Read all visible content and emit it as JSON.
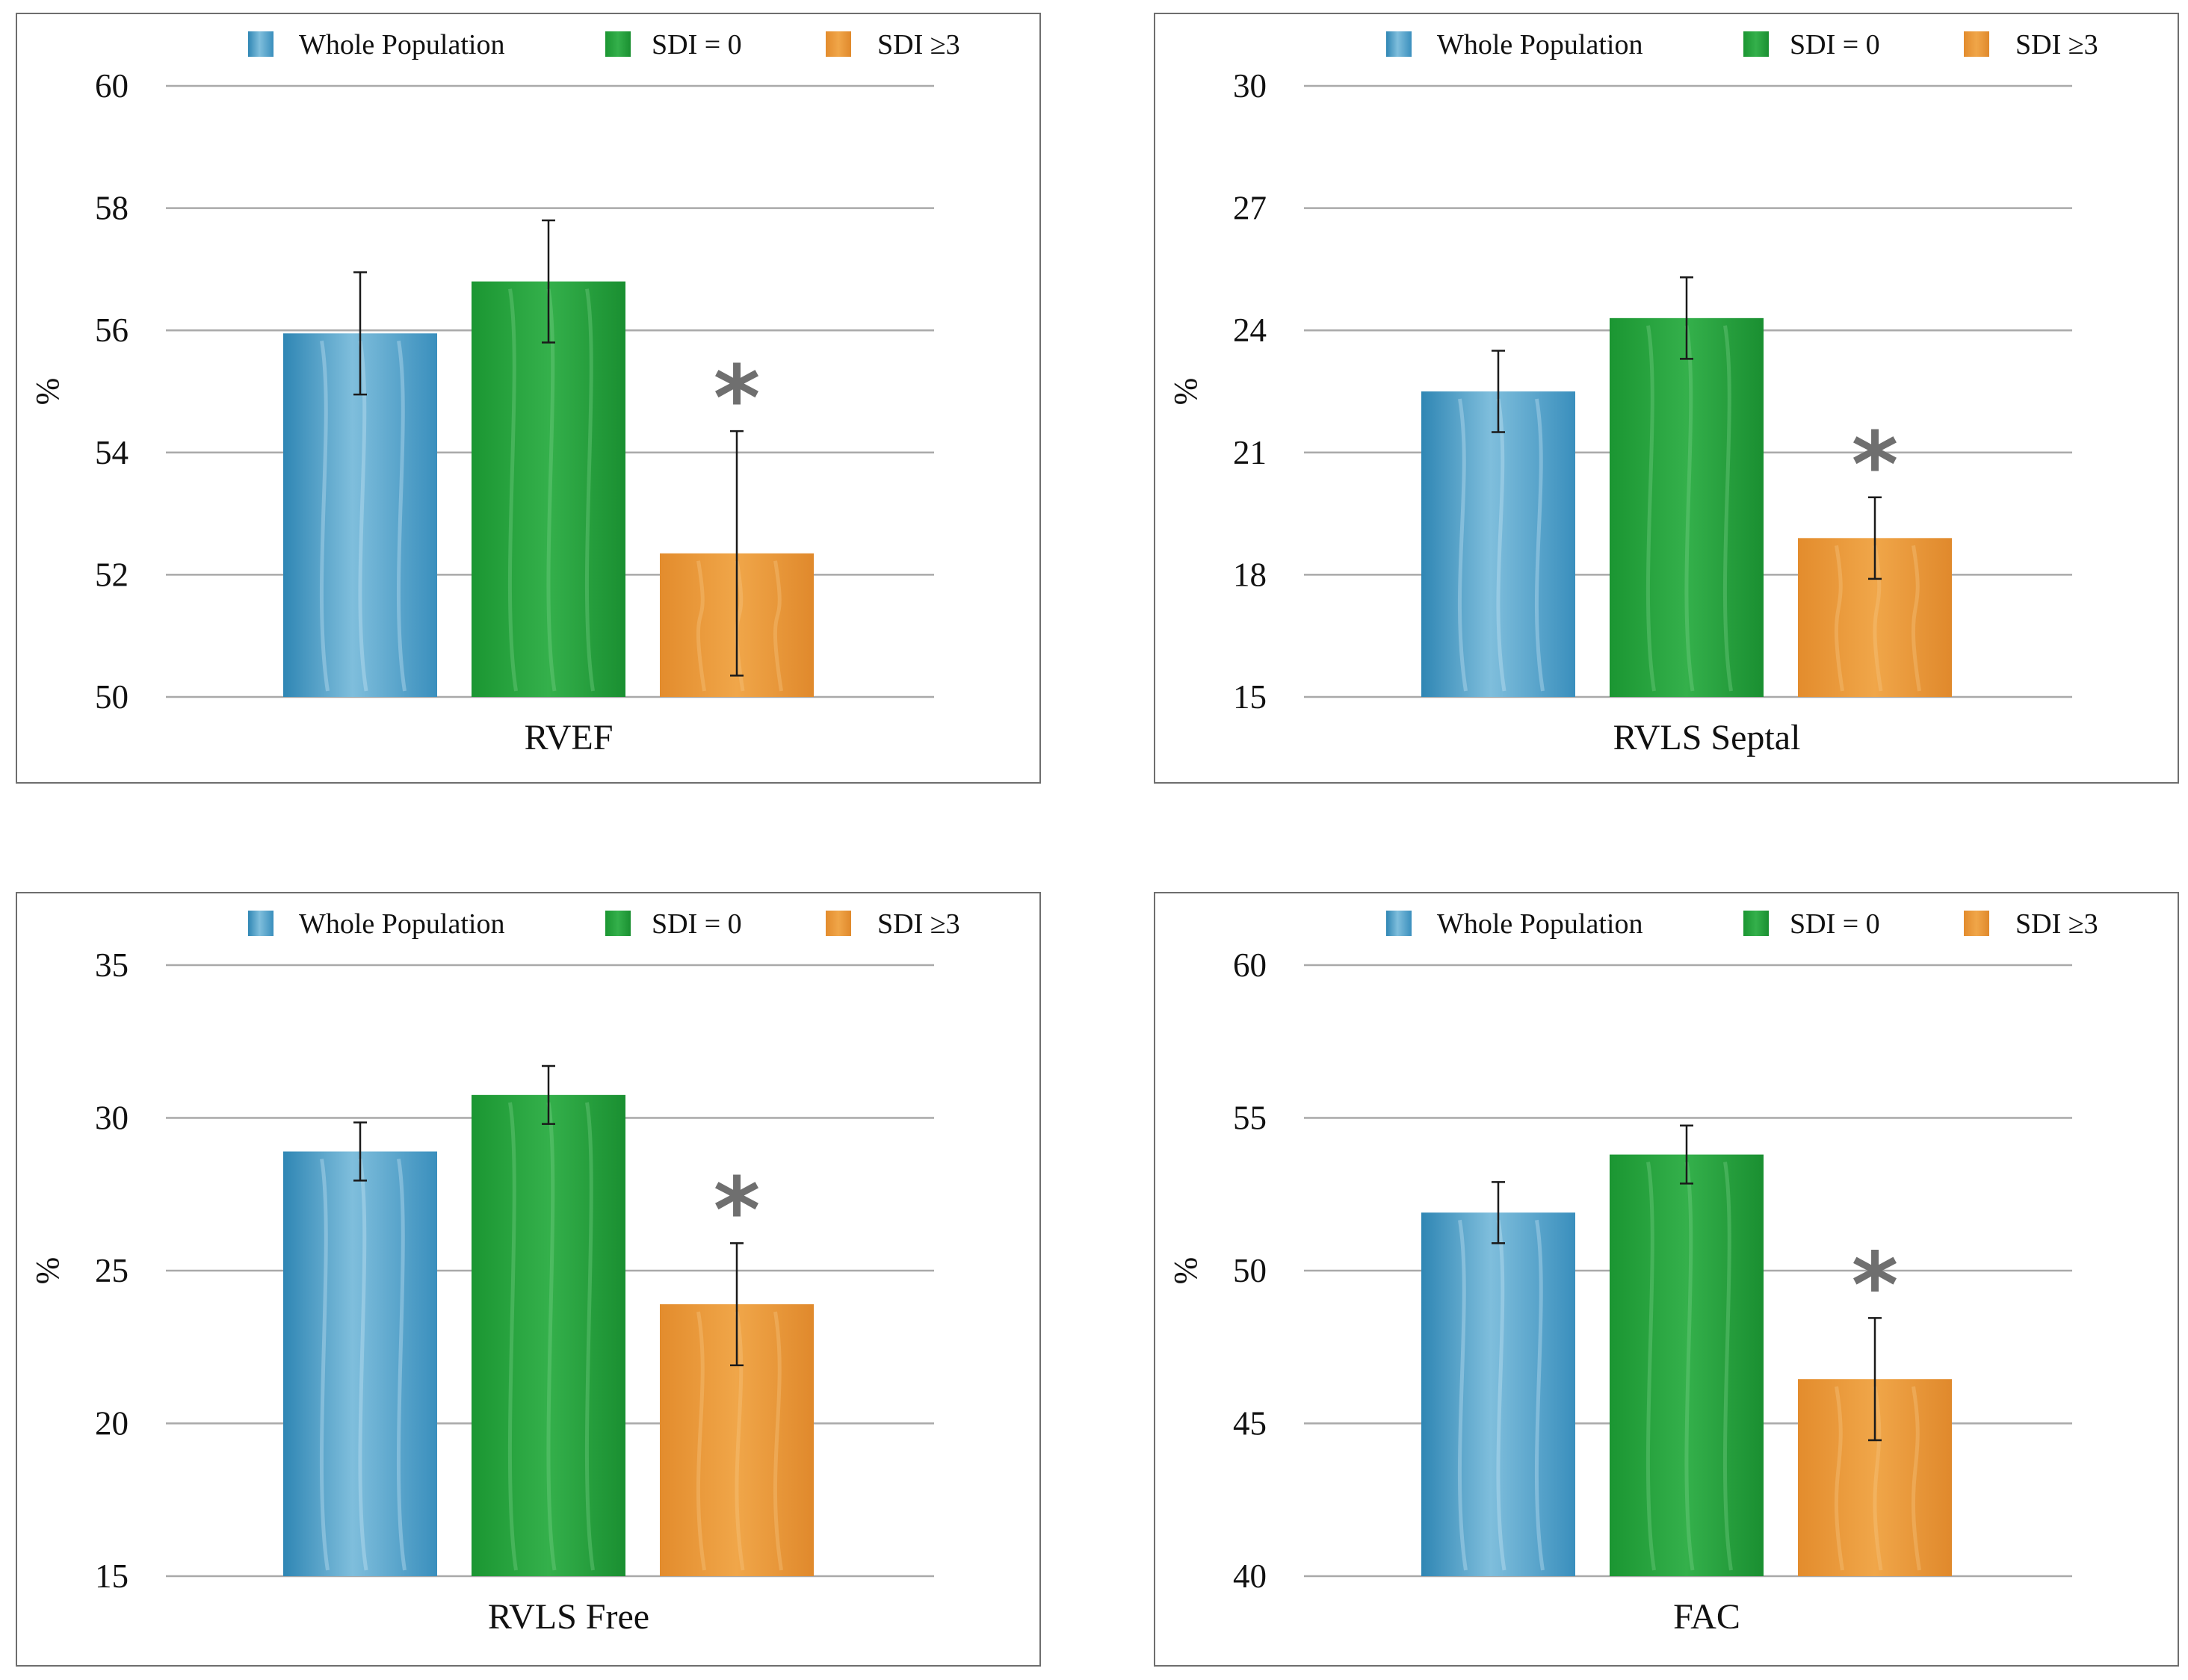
{
  "chart_data": [
    {
      "type": "bar",
      "title": "",
      "xlabel": "RVEF",
      "ylabel": "%",
      "ylim": [
        50,
        60
      ],
      "yticks": [
        50,
        52,
        54,
        56,
        58,
        60
      ],
      "grid": true,
      "legend_position": "top",
      "categories": [
        "Whole Population",
        "SDI = 0",
        "SDI ≥3"
      ],
      "series": [
        {
          "name": "Whole Population",
          "color": "#4c9cc6",
          "value": 55.95,
          "error": 1.0
        },
        {
          "name": "SDI = 0",
          "color": "#22a33a",
          "value": 56.8,
          "error": 1.0
        },
        {
          "name": "SDI ≥3",
          "color": "#eb9a3a",
          "value": 52.35,
          "error": 2.0,
          "annotation": "*"
        }
      ]
    },
    {
      "type": "bar",
      "title": "",
      "xlabel": "RVLS Septal",
      "ylabel": "%",
      "ylim": [
        15,
        30
      ],
      "yticks": [
        15,
        18,
        21,
        24,
        27,
        30
      ],
      "grid": true,
      "legend_position": "top",
      "categories": [
        "Whole Population",
        "SDI = 0",
        "SDI ≥3"
      ],
      "series": [
        {
          "name": "Whole Population",
          "color": "#4c9cc6",
          "value": 22.5,
          "error": 1.0
        },
        {
          "name": "SDI = 0",
          "color": "#22a33a",
          "value": 24.3,
          "error": 1.0
        },
        {
          "name": "SDI ≥3",
          "color": "#eb9a3a",
          "value": 18.9,
          "error": 1.0,
          "annotation": "*"
        }
      ]
    },
    {
      "type": "bar",
      "title": "",
      "xlabel": "RVLS Free",
      "ylabel": "%",
      "ylim": [
        15,
        35
      ],
      "yticks": [
        15,
        20,
        25,
        30,
        35
      ],
      "grid": true,
      "legend_position": "top",
      "categories": [
        "Whole Population",
        "SDI = 0",
        "SDI ≥3"
      ],
      "series": [
        {
          "name": "Whole Population",
          "color": "#4c9cc6",
          "value": 28.9,
          "error": 0.95
        },
        {
          "name": "SDI = 0",
          "color": "#22a33a",
          "value": 30.75,
          "error": 0.95
        },
        {
          "name": "SDI ≥3",
          "color": "#eb9a3a",
          "value": 23.9,
          "error": 2.0,
          "annotation": "*"
        }
      ]
    },
    {
      "type": "bar",
      "title": "",
      "xlabel": "FAC",
      "ylabel": "%",
      "ylim": [
        40,
        60
      ],
      "yticks": [
        40,
        45,
        50,
        55,
        60
      ],
      "grid": true,
      "legend_position": "top",
      "categories": [
        "Whole Population",
        "SDI = 0",
        "SDI ≥3"
      ],
      "series": [
        {
          "name": "Whole Population",
          "color": "#4c9cc6",
          "value": 51.9,
          "error": 1.0
        },
        {
          "name": "SDI = 0",
          "color": "#22a33a",
          "value": 53.8,
          "error": 0.95
        },
        {
          "name": "SDI ≥3",
          "color": "#eb9a3a",
          "value": 46.45,
          "error": 2.0,
          "annotation": "*"
        }
      ]
    }
  ]
}
